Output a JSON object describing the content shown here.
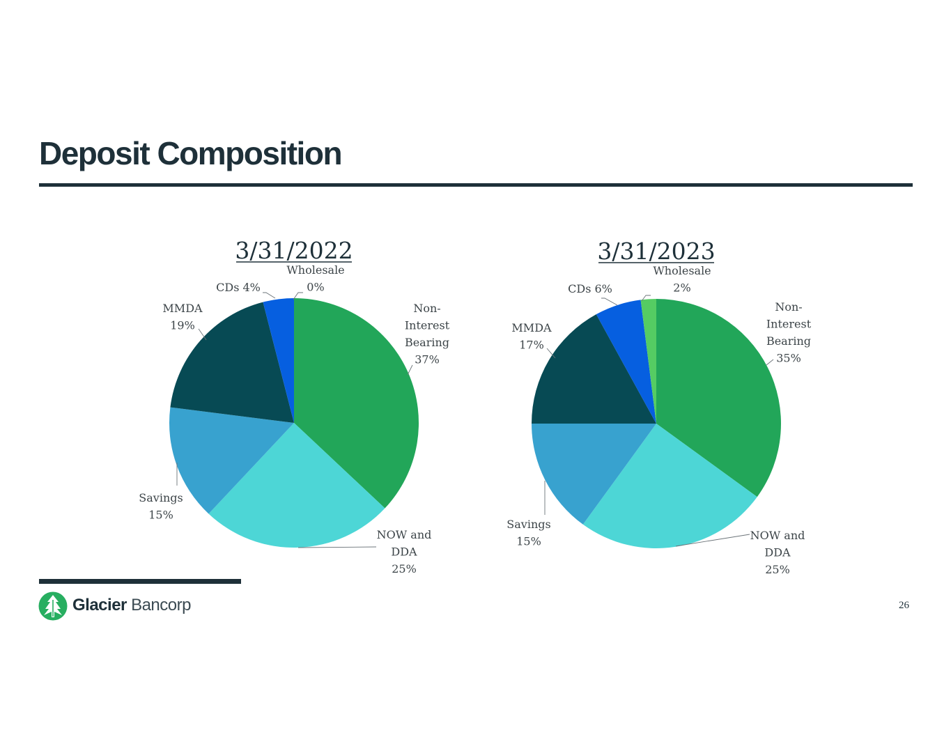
{
  "slide": {
    "title": "Deposit Composition",
    "page_number": "26"
  },
  "logo": {
    "brand_bold": "Glacier",
    "brand_light": "Bancorp"
  },
  "colors": {
    "non_interest": "#22a659",
    "now_dda": "#4dd6d6",
    "savings": "#38a2cf",
    "mmda": "#074a54",
    "cds": "#065fe0",
    "wholesale": "#55cc63",
    "text_dark": "#1e3039",
    "label_gray": "#3c4448",
    "logo_green": "#27ae60"
  },
  "chart_data": [
    {
      "type": "pie",
      "title": "3/31/2022",
      "slices": [
        {
          "label": "Non-Interest Bearing",
          "value": 37,
          "display": [
            "Non-",
            "Interest",
            "Bearing",
            "37%"
          ],
          "color": "#22a659"
        },
        {
          "label": "NOW and DDA",
          "value": 25,
          "display": [
            "NOW and",
            "DDA",
            "25%"
          ],
          "color": "#4dd6d6"
        },
        {
          "label": "Savings",
          "value": 15,
          "display": [
            "Savings",
            "15%"
          ],
          "color": "#38a2cf"
        },
        {
          "label": "MMDA",
          "value": 19,
          "display": [
            "MMDA",
            "19%"
          ],
          "color": "#074a54"
        },
        {
          "label": "CDs",
          "value": 4,
          "display": [
            "CDs 4%"
          ],
          "color": "#065fe0"
        },
        {
          "label": "Wholesale",
          "value": 0,
          "display": [
            "Wholesale",
            "0%"
          ],
          "color": "#55cc63"
        }
      ]
    },
    {
      "type": "pie",
      "title": "3/31/2023",
      "slices": [
        {
          "label": "Non-Interest Bearing",
          "value": 35,
          "display": [
            "Non-",
            "Interest",
            "Bearing",
            "35%"
          ],
          "color": "#22a659"
        },
        {
          "label": "NOW and DDA",
          "value": 25,
          "display": [
            "NOW and",
            "DDA",
            "25%"
          ],
          "color": "#4dd6d6"
        },
        {
          "label": "Savings",
          "value": 15,
          "display": [
            "Savings",
            "15%"
          ],
          "color": "#38a2cf"
        },
        {
          "label": "MMDA",
          "value": 17,
          "display": [
            "MMDA",
            "17%"
          ],
          "color": "#074a54"
        },
        {
          "label": "CDs",
          "value": 6,
          "display": [
            "CDs 6%"
          ],
          "color": "#065fe0"
        },
        {
          "label": "Wholesale",
          "value": 2,
          "display": [
            "Wholesale",
            "2%"
          ],
          "color": "#55cc63"
        }
      ]
    }
  ]
}
